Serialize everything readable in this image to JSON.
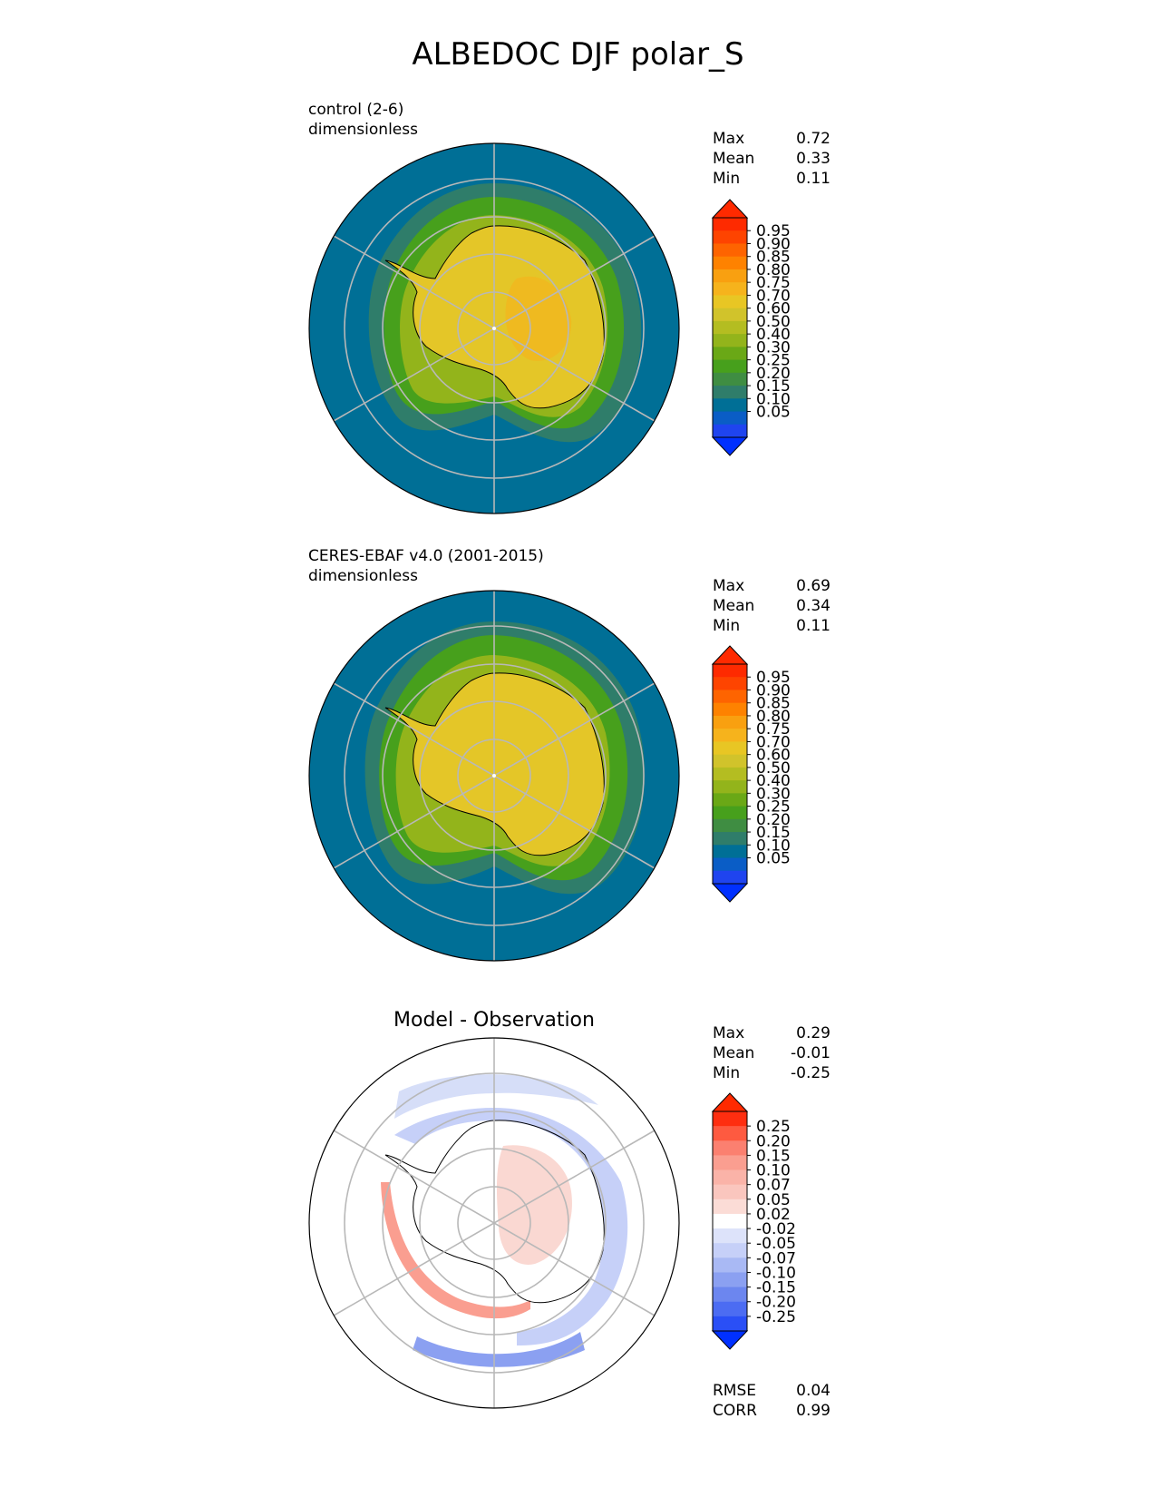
{
  "title": "ALBEDOC DJF polar_S",
  "colors": {
    "ocean": "#006f96",
    "ice": "#e4c628",
    "ice_high": "#f4b51d",
    "grid": "#b8b8b8",
    "coast": "#000000",
    "diff_pos": "#fad8d2",
    "diff_neg": "#d6def8"
  },
  "chart_data": [
    {
      "type": "heatmap",
      "projection": "south-polar-stereographic",
      "title": "control (2-6)",
      "units": "dimensionless",
      "stats": [
        {
          "label": "Max",
          "value": "0.72"
        },
        {
          "label": "Mean",
          "value": "0.33"
        },
        {
          "label": "Min",
          "value": "0.11"
        }
      ],
      "colorbar": {
        "extend": "both",
        "ticks": [
          "0.95",
          "0.90",
          "0.85",
          "0.80",
          "0.75",
          "0.70",
          "0.60",
          "0.50",
          "0.40",
          "0.30",
          "0.25",
          "0.20",
          "0.15",
          "0.10",
          "0.05"
        ],
        "colors": [
          "#fe2a00",
          "#fe4400",
          "#fe6400",
          "#fe8200",
          "#f9a010",
          "#f6b31c",
          "#e8c624",
          "#d1c32b",
          "#b4bd21",
          "#93b41b",
          "#6aa816",
          "#47a01c",
          "#3f8d42",
          "#2f7d6a",
          "#006f96",
          "#0a5dc6",
          "#1f44ef"
        ],
        "low_color": "#0030ff",
        "high_color": "#ff2a00"
      }
    },
    {
      "type": "heatmap",
      "projection": "south-polar-stereographic",
      "title": "CERES-EBAF v4.0 (2001-2015)",
      "units": "dimensionless",
      "stats": [
        {
          "label": "Max",
          "value": "0.69"
        },
        {
          "label": "Mean",
          "value": "0.34"
        },
        {
          "label": "Min",
          "value": "0.11"
        }
      ],
      "colorbar": {
        "extend": "both",
        "ticks": [
          "0.95",
          "0.90",
          "0.85",
          "0.80",
          "0.75",
          "0.70",
          "0.60",
          "0.50",
          "0.40",
          "0.30",
          "0.25",
          "0.20",
          "0.15",
          "0.10",
          "0.05"
        ],
        "colors": [
          "#fe2a00",
          "#fe4400",
          "#fe6400",
          "#fe8200",
          "#f9a010",
          "#f6b31c",
          "#e8c624",
          "#d1c32b",
          "#b4bd21",
          "#93b41b",
          "#6aa816",
          "#47a01c",
          "#3f8d42",
          "#2f7d6a",
          "#006f96",
          "#0a5dc6",
          "#1f44ef"
        ],
        "low_color": "#0030ff",
        "high_color": "#ff2a00"
      }
    },
    {
      "type": "heatmap",
      "projection": "south-polar-stereographic",
      "title": "Model - Observation",
      "stats": [
        {
          "label": "Max",
          "value": "0.29"
        },
        {
          "label": "Mean",
          "value": "-0.01"
        },
        {
          "label": "Min",
          "value": "-0.25"
        }
      ],
      "colorbar": {
        "extend": "both",
        "ticks": [
          "0.25",
          "0.20",
          "0.15",
          "0.10",
          "0.07",
          "0.05",
          "0.02",
          "-0.02",
          "-0.05",
          "-0.07",
          "-0.10",
          "-0.15",
          "-0.20",
          "-0.25"
        ],
        "colors": [
          "#fe2e10",
          "#fe5a40",
          "#fb8070",
          "#fa9e90",
          "#fab3a8",
          "#fac6be",
          "#fbdcd6",
          "#ffffff",
          "#dde3fa",
          "#c6d0f8",
          "#a9b9f4",
          "#8ba0f1",
          "#6c86ef",
          "#4c6cf2",
          "#2a4ff6"
        ],
        "low_color": "#0030ff",
        "high_color": "#ff2a00"
      },
      "metrics": [
        {
          "label": "RMSE",
          "value": "0.04"
        },
        {
          "label": "CORR",
          "value": "0.99"
        }
      ]
    }
  ]
}
